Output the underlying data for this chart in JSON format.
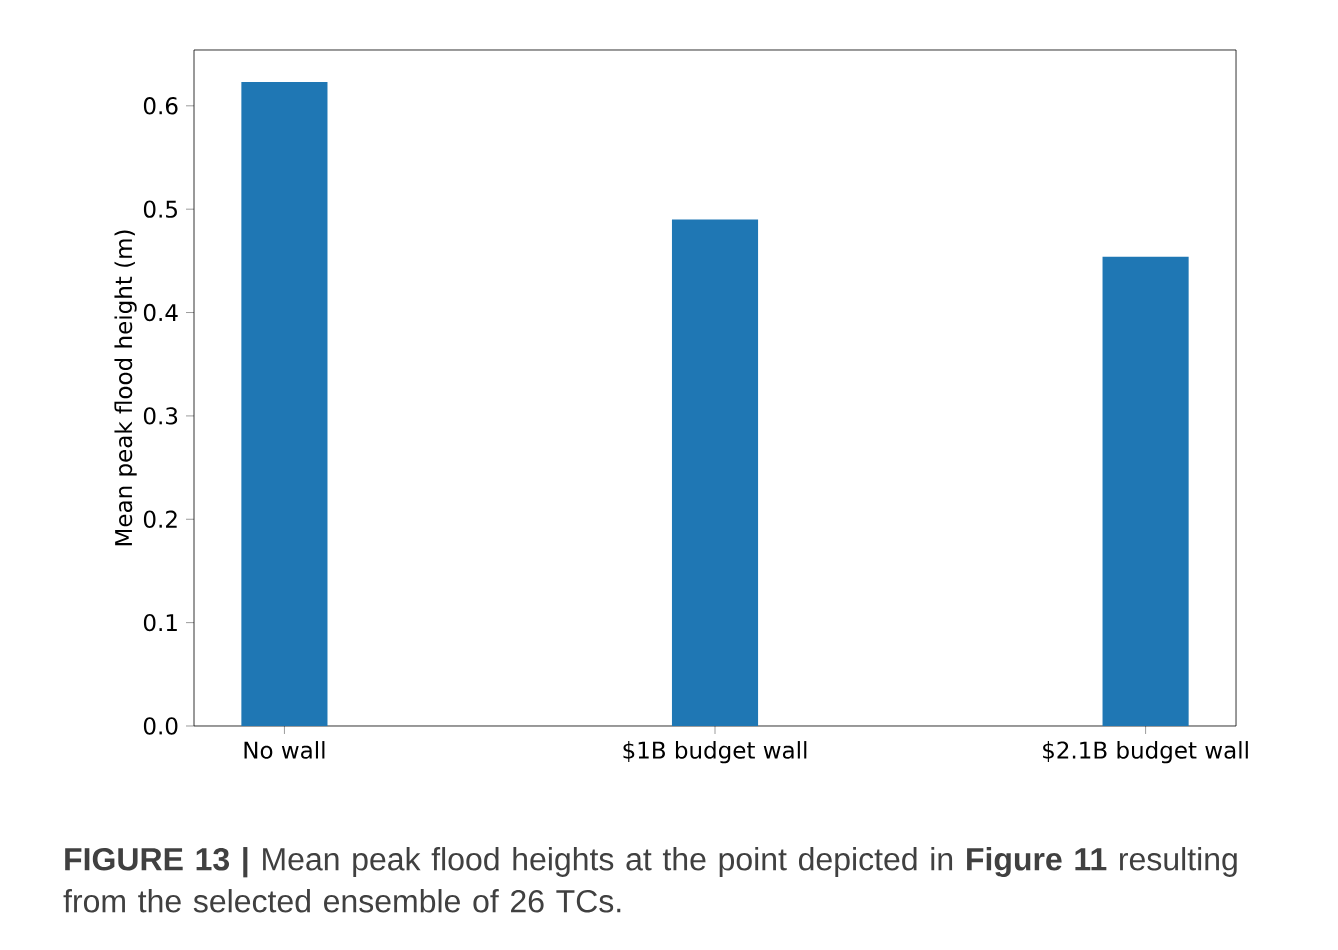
{
  "chart_data": {
    "type": "bar",
    "ylabel": "Mean peak flood height (m)",
    "categories": [
      "No wall",
      "$1B budget wall",
      "$2.1B budget wall"
    ],
    "values": [
      0.623,
      0.49,
      0.454
    ],
    "color": "#1f77b4",
    "ylim": [
      0,
      0.654
    ],
    "yticks": [
      {
        "value": 0,
        "label": "0.0"
      },
      0.1,
      0.2,
      0.3,
      0.4,
      0.5,
      0.6
    ],
    "annotations": [
      "**FIGURE 13 |** Mean peak flood heights at the point depicted in **Figure 11** resulting from the selected ensemble of 26 TCs."
    ]
  }
}
